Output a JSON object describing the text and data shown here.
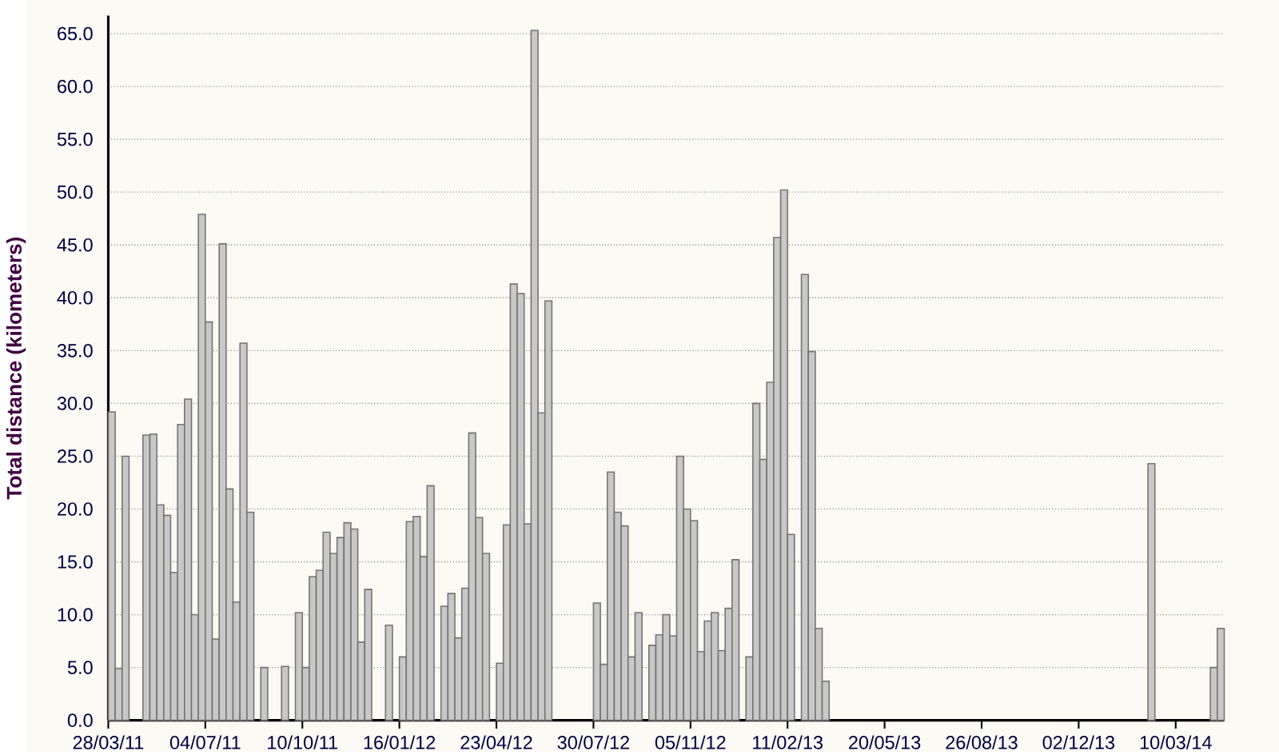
{
  "chart_data": {
    "type": "bar",
    "ylabel": "Total distance (kilometers)",
    "x": [
      "2011-03-28",
      "2011-04-04",
      "2011-04-11",
      "2011-05-02",
      "2011-05-09",
      "2011-05-16",
      "2011-05-23",
      "2011-05-30",
      "2011-06-06",
      "2011-06-13",
      "2011-06-20",
      "2011-06-27",
      "2011-07-04",
      "2011-07-11",
      "2011-07-18",
      "2011-07-25",
      "2011-08-01",
      "2011-08-08",
      "2011-08-15",
      "2011-08-29",
      "2011-09-19",
      "2011-10-03",
      "2011-10-10",
      "2011-10-17",
      "2011-10-24",
      "2011-10-31",
      "2011-11-07",
      "2011-11-14",
      "2011-11-21",
      "2011-11-28",
      "2011-12-05",
      "2011-12-12",
      "2012-01-02",
      "2012-01-16",
      "2012-01-23",
      "2012-01-30",
      "2012-02-06",
      "2012-02-13",
      "2012-02-27",
      "2012-03-05",
      "2012-03-12",
      "2012-03-19",
      "2012-03-26",
      "2012-04-02",
      "2012-04-09",
      "2012-04-23",
      "2012-04-30",
      "2012-05-07",
      "2012-05-14",
      "2012-05-21",
      "2012-05-28",
      "2012-06-04",
      "2012-06-11",
      "2012-07-30",
      "2012-08-06",
      "2012-08-13",
      "2012-08-20",
      "2012-08-27",
      "2012-09-03",
      "2012-09-10",
      "2012-09-24",
      "2012-10-01",
      "2012-10-08",
      "2012-10-15",
      "2012-10-22",
      "2012-10-29",
      "2012-11-05",
      "2012-11-12",
      "2012-11-19",
      "2012-11-26",
      "2012-12-03",
      "2012-12-10",
      "2012-12-17",
      "2012-12-31",
      "2013-01-07",
      "2013-01-14",
      "2013-01-21",
      "2013-01-28",
      "2013-02-04",
      "2013-02-11",
      "2013-02-25",
      "2013-03-04",
      "2013-03-11",
      "2013-03-18",
      "2014-02-10",
      "2014-04-14",
      "2014-04-21"
    ],
    "values": [
      29.2,
      4.9,
      25.0,
      27.0,
      27.1,
      20.4,
      19.4,
      14.0,
      28.0,
      30.4,
      10.0,
      47.9,
      37.7,
      7.7,
      45.1,
      21.9,
      11.2,
      35.7,
      19.7,
      5.0,
      5.1,
      10.2,
      5.0,
      13.6,
      14.2,
      17.8,
      15.8,
      17.3,
      18.7,
      18.1,
      7.4,
      12.4,
      9.0,
      6.0,
      18.8,
      19.3,
      15.5,
      22.2,
      10.8,
      12.0,
      7.8,
      12.5,
      27.2,
      19.2,
      15.8,
      5.4,
      18.5,
      41.3,
      40.4,
      18.6,
      65.3,
      29.1,
      39.7,
      11.1,
      5.3,
      23.5,
      19.7,
      18.4,
      6.0,
      10.2,
      7.1,
      8.1,
      10.0,
      8.0,
      25.0,
      20.0,
      18.9,
      6.5,
      9.4,
      10.2,
      6.6,
      10.6,
      15.2,
      6.0,
      30.0,
      24.7,
      32.0,
      45.7,
      50.2,
      17.6,
      42.2,
      34.9,
      8.7,
      3.7,
      24.3,
      5.0,
      8.7
    ],
    "color": "#c8c8c8",
    "xlim": [
      "2011-03-28",
      "2014-04-28"
    ],
    "xticks": [
      {
        "value": "2011-03-28",
        "label": "28/03/11"
      },
      {
        "value": "2011-07-04",
        "label": "04/07/11"
      },
      {
        "value": "2011-10-10",
        "label": "10/10/11"
      },
      {
        "value": "2012-01-16",
        "label": "16/01/12"
      },
      {
        "value": "2012-04-23",
        "label": "23/04/12"
      },
      {
        "value": "2012-07-30",
        "label": "30/07/12"
      },
      {
        "value": "2012-11-05",
        "label": "05/11/12"
      },
      {
        "value": "2013-02-11",
        "label": "11/02/13"
      },
      {
        "value": "2013-05-20",
        "label": "20/05/13"
      },
      {
        "value": "2013-08-26",
        "label": "26/08/13"
      },
      {
        "value": "2013-12-02",
        "label": "02/12/13"
      },
      {
        "value": "2014-03-10",
        "label": "10/03/14"
      }
    ],
    "ylim": [
      0,
      66.7
    ],
    "yticks": [
      {
        "value": 0,
        "label": "0.0"
      },
      {
        "value": 5,
        "label": "5.0"
      },
      {
        "value": 10,
        "label": "10.0"
      },
      {
        "value": 15,
        "label": "15.0"
      },
      {
        "value": 20,
        "label": "20.0"
      },
      {
        "value": 25,
        "label": "25.0"
      },
      {
        "value": 30,
        "label": "30.0"
      },
      {
        "value": 35,
        "label": "35.0"
      },
      {
        "value": 40,
        "label": "40.0"
      },
      {
        "value": 45,
        "label": "45.0"
      },
      {
        "value": 50,
        "label": "50.0"
      },
      {
        "value": 55,
        "label": "55.0"
      },
      {
        "value": 60,
        "label": "60.0"
      },
      {
        "value": 65,
        "label": "65.0"
      }
    ],
    "grid": "y"
  }
}
